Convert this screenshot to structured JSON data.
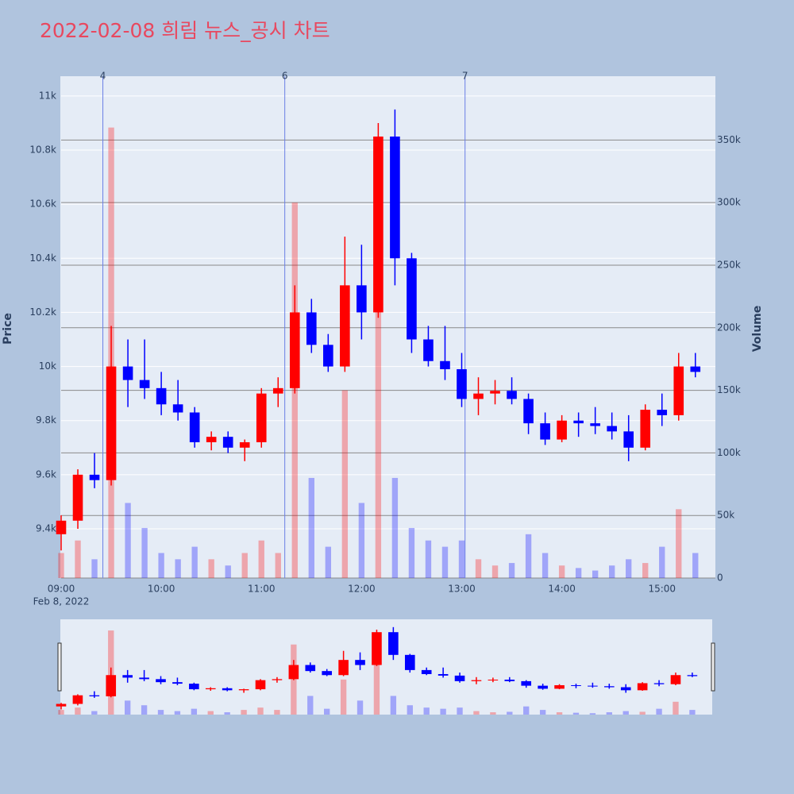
{
  "chart_data": {
    "type": "candlestick",
    "title": "2022-02-08 희림 뉴스_공시 차트",
    "ylabel": "Price",
    "y2label": "Volume",
    "x": [
      "09:00",
      "09:10",
      "09:20",
      "09:30",
      "09:40",
      "09:50",
      "10:00",
      "10:10",
      "10:20",
      "10:30",
      "10:40",
      "10:50",
      "11:00",
      "11:10",
      "11:20",
      "11:30",
      "11:40",
      "11:50",
      "12:00",
      "12:10",
      "12:20",
      "12:30",
      "12:40",
      "12:50",
      "13:00",
      "13:10",
      "13:20",
      "13:30",
      "13:40",
      "13:50",
      "14:00",
      "14:10",
      "14:20",
      "14:30",
      "14:40",
      "14:50",
      "15:00",
      "15:10",
      "15:20"
    ],
    "open": [
      9380,
      9430,
      9600,
      9580,
      10000,
      9950,
      9920,
      9860,
      9830,
      9720,
      9740,
      9700,
      9720,
      9900,
      9920,
      10200,
      10080,
      10000,
      10300,
      10200,
      10850,
      10400,
      10100,
      10020,
      9990,
      9880,
      9900,
      9910,
      9880,
      9790,
      9730,
      9800,
      9790,
      9780,
      9760,
      9700,
      9840,
      9820,
      10000
    ],
    "high": [
      9450,
      9620,
      9680,
      10150,
      10100,
      10100,
      9980,
      9950,
      9850,
      9760,
      9760,
      9730,
      9920,
      9960,
      10300,
      10250,
      10120,
      10480,
      10450,
      10900,
      10950,
      10420,
      10150,
      10150,
      10050,
      9960,
      9950,
      9960,
      9900,
      9830,
      9820,
      9830,
      9850,
      9830,
      9820,
      9860,
      9900,
      10050,
      10050
    ],
    "low": [
      9320,
      9400,
      9550,
      9560,
      9850,
      9880,
      9820,
      9800,
      9700,
      9690,
      9680,
      9650,
      9700,
      9850,
      9900,
      10050,
      9980,
      9980,
      10100,
      10180,
      10300,
      10050,
      10000,
      9950,
      9850,
      9820,
      9860,
      9860,
      9750,
      9710,
      9720,
      9740,
      9750,
      9730,
      9650,
      9690,
      9780,
      9800,
      9960
    ],
    "close": [
      9430,
      9600,
      9580,
      10000,
      9950,
      9920,
      9860,
      9830,
      9720,
      9740,
      9700,
      9720,
      9900,
      9920,
      10200,
      10080,
      10000,
      10300,
      10200,
      10850,
      10400,
      10100,
      10020,
      9990,
      9880,
      9900,
      9910,
      9880,
      9790,
      9730,
      9800,
      9790,
      9780,
      9760,
      9700,
      9840,
      9820,
      10000,
      9980
    ],
    "volume": [
      20000,
      30000,
      15000,
      360000,
      60000,
      40000,
      20000,
      15000,
      25000,
      15000,
      10000,
      20000,
      30000,
      20000,
      300000,
      80000,
      25000,
      150000,
      60000,
      220000,
      80000,
      40000,
      30000,
      25000,
      30000,
      15000,
      10000,
      12000,
      35000,
      20000,
      10000,
      8000,
      6000,
      10000,
      15000,
      12000,
      25000,
      55000,
      20000
    ],
    "up_color": "#ff0000",
    "down_color": "#0000ff",
    "xlim": [
      "09:00",
      "15:32"
    ],
    "xticks": [
      "09:00",
      "10:00",
      "11:00",
      "12:00",
      "13:00",
      "14:00",
      "15:00"
    ],
    "x_date_label": "Feb 8, 2022",
    "ylim": [
      9218,
      11073
    ],
    "yticks": [
      {
        "value": 9400,
        "label": "9.4k"
      },
      {
        "value": 9600,
        "label": "9.6k"
      },
      {
        "value": 9800,
        "label": "9.8k"
      },
      {
        "value": 10000,
        "label": "10k"
      },
      {
        "value": 10200,
        "label": "10.2k"
      },
      {
        "value": 10400,
        "label": "10.4k"
      },
      {
        "value": 10600,
        "label": "10.6k"
      },
      {
        "value": 10800,
        "label": "10.8k"
      },
      {
        "value": 11000,
        "label": "11k"
      }
    ],
    "y2lim": [
      0,
      401000
    ],
    "y2ticks": [
      0,
      {
        "value": 50000,
        "label": "50k"
      },
      {
        "value": 100000,
        "label": "100k"
      },
      {
        "value": 150000,
        "label": "150k"
      },
      {
        "value": 200000,
        "label": "200k"
      },
      {
        "value": 250000,
        "label": "250k"
      },
      {
        "value": 300000,
        "label": "300k"
      },
      {
        "value": 350000,
        "label": "350k"
      }
    ],
    "annotations": [
      {
        "x": "09:25",
        "label": "4"
      },
      {
        "x": "11:14",
        "label": "6"
      },
      {
        "x": "13:02",
        "label": "7"
      }
    ],
    "grid": true,
    "rangeslider": true
  }
}
